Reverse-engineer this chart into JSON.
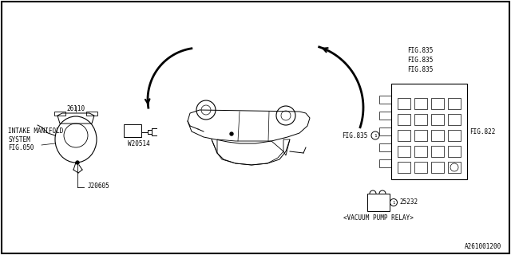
{
  "title": "",
  "background_color": "#ffffff",
  "border_color": "#000000",
  "line_color": "#000000",
  "text_color": "#000000",
  "diagram_number": "A261001200",
  "labels": {
    "j20605": "J20605",
    "intake_manifold": "INTAKE MANIFOLD\nSYSTEM\nFIG.050",
    "w20514": "W20514",
    "part26110": "26110",
    "fig822": "FIG.822",
    "fig835_1": "FIG.835",
    "fig835_2": "FIG.835",
    "fig835_3": "FIG.835",
    "fig835_4": "FIG.835",
    "part25232": "25232",
    "vacuum_pump_relay": "<VACUUM PUMP RELAY>"
  }
}
